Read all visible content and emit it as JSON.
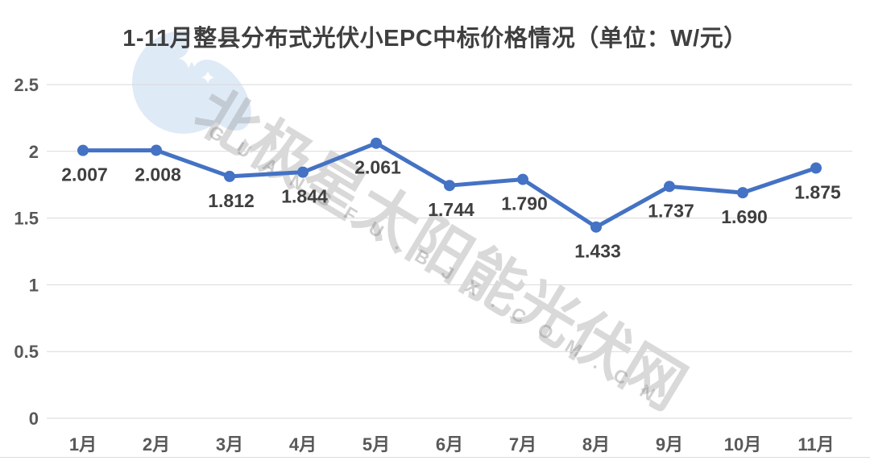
{
  "title": {
    "text": "1-11月整县分布式光伏小EPC中标价格情况（单位：W/元）"
  },
  "watermark": {
    "cn_text": "北极星太阳能光伏网",
    "latin_text": "GUANGFU.BJX.COM.CN",
    "logo_icon": "polaris-moon-logo"
  },
  "chart_data": {
    "type": "line",
    "title": "1-11月整县分布式光伏小EPC中标价格情况（单位：W/元）",
    "categories": [
      "1月",
      "2月",
      "3月",
      "4月",
      "5月",
      "6月",
      "7月",
      "8月",
      "9月",
      "10月",
      "11月"
    ],
    "values": [
      2.007,
      2.008,
      1.812,
      1.844,
      2.061,
      1.744,
      1.79,
      1.433,
      1.737,
      1.69,
      1.875
    ],
    "value_labels": [
      "2.007",
      "2.008",
      "1.812",
      "1.844",
      "2.061",
      "1.744",
      "1.790",
      "1.433",
      "1.737",
      "1.690",
      "1.875"
    ],
    "xlabel": "",
    "ylabel": "",
    "ylim": [
      0,
      2.5
    ],
    "ytick_labels": [
      "0",
      "0.5",
      "1",
      "1.5",
      "2",
      "2.5"
    ],
    "grid": true,
    "legend": "none",
    "marker": "circle",
    "colors": {
      "line": "#4472C4",
      "grid": "#D9D9D9",
      "title_text": "#3F3F3F",
      "data_label": "#3F3F3F",
      "axis_label": "#595959",
      "watermark_logo": "#DCE8F7"
    }
  }
}
